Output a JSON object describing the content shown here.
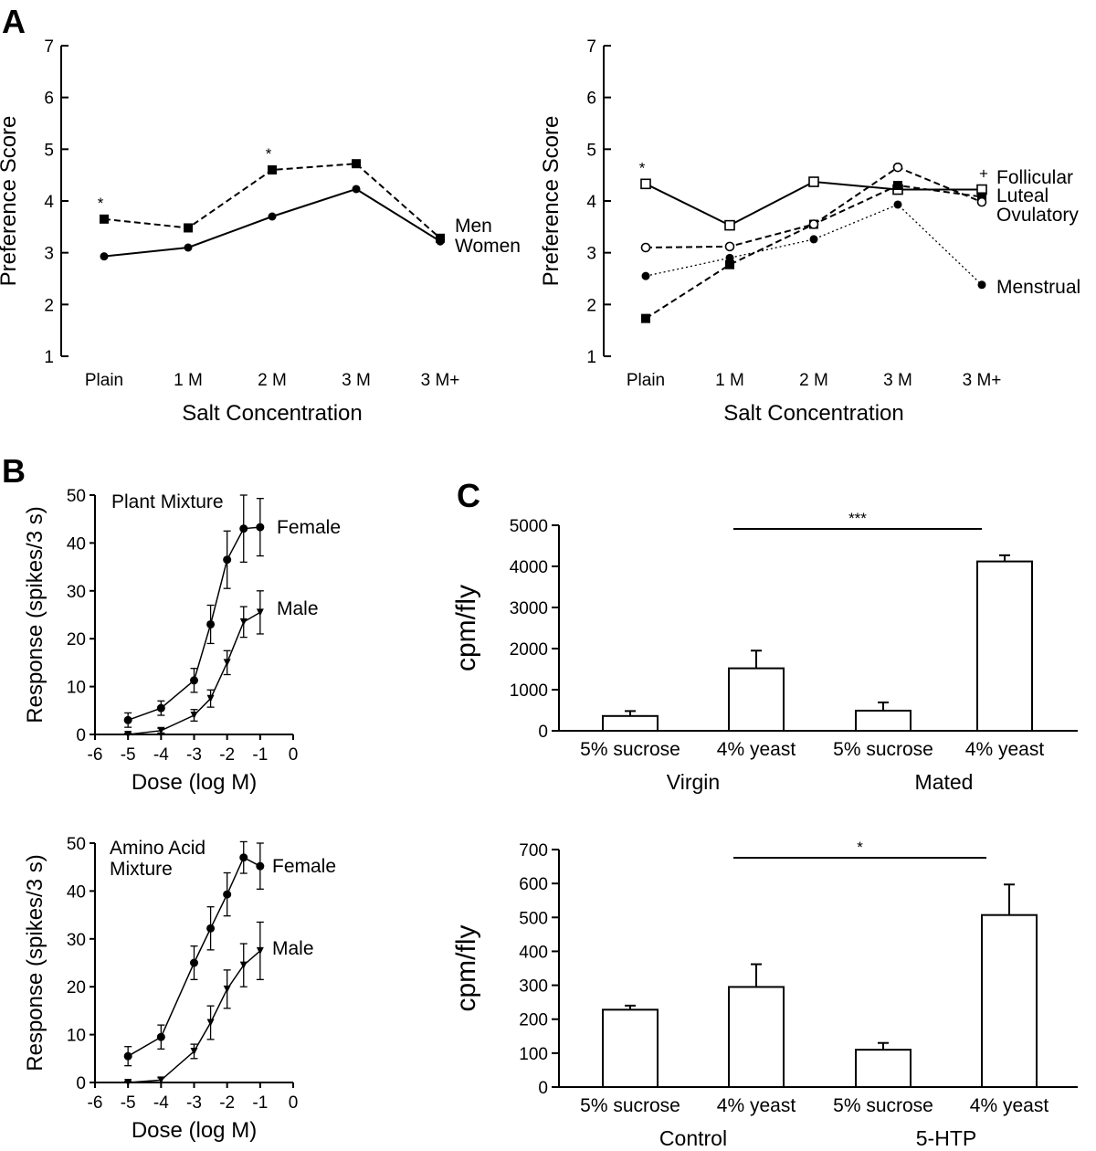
{
  "panel_labels": {
    "a": "A",
    "b": "B",
    "c": "C"
  },
  "chart_data": [
    {
      "id": "A1",
      "type": "line",
      "ylabel": "Preference Score",
      "xlabel": "Salt Concentration",
      "categories": [
        "Plain",
        "1 M",
        "2 M",
        "3 M",
        "3 M+"
      ],
      "ylim": [
        1,
        7
      ],
      "yticks": [
        "1",
        "2",
        "3",
        "4",
        "5",
        "6",
        "7"
      ],
      "series": [
        {
          "name": "Men",
          "style": "dashed",
          "marker": "filled-square",
          "values": [
            3.65,
            3.48,
            4.6,
            4.72,
            3.28
          ]
        },
        {
          "name": "Women",
          "style": "solid",
          "marker": "filled-circle",
          "values": [
            2.93,
            3.1,
            3.7,
            4.23,
            3.22
          ]
        }
      ],
      "sig_marks": [
        {
          "category": 0,
          "label": "*"
        },
        {
          "category": 2,
          "label": "*"
        }
      ]
    },
    {
      "id": "A2",
      "type": "line",
      "ylabel": "Preference Score",
      "xlabel": "Salt Concentration",
      "categories": [
        "Plain",
        "1 M",
        "2 M",
        "3 M",
        "3 M+"
      ],
      "ylim": [
        1,
        7
      ],
      "yticks": [
        "1",
        "2",
        "3",
        "4",
        "5",
        "6",
        "7"
      ],
      "series": [
        {
          "name": "Follicular",
          "style": "solid",
          "marker": "open-square",
          "values": [
            4.33,
            3.53,
            4.37,
            4.22,
            4.22
          ]
        },
        {
          "name": "Luteal",
          "style": "dashed",
          "marker": "filled-square",
          "values": [
            1.73,
            2.77,
            3.55,
            4.3,
            4.08
          ]
        },
        {
          "name": "Ovulatory",
          "style": "dashed",
          "marker": "open-circle",
          "values": [
            3.1,
            3.12,
            3.55,
            4.65,
            3.98
          ]
        },
        {
          "name": "Menstrual",
          "style": "dotted",
          "marker": "filled-circle",
          "values": [
            2.55,
            2.9,
            3.26,
            3.93,
            2.38
          ]
        }
      ],
      "sig_marks": [
        {
          "category": 0,
          "label": "*"
        },
        {
          "category": 4,
          "label": "+"
        }
      ]
    },
    {
      "id": "B1",
      "type": "line",
      "title": "Plant Mixture",
      "ylabel": "Response (spikes/3 s)",
      "xlabel": "Dose (log M)",
      "xlim": [
        -6,
        0
      ],
      "ylim": [
        0,
        50
      ],
      "xticks": [
        "-6",
        "-5",
        "-4",
        "-3",
        "-2",
        "-1",
        "0"
      ],
      "yticks": [
        "0",
        "10",
        "20",
        "30",
        "40",
        "50"
      ],
      "series": [
        {
          "name": "Female",
          "marker": "filled-circle",
          "x": [
            -5,
            -4,
            -3,
            -2.5,
            -2,
            -1.5,
            -1
          ],
          "values": [
            3,
            5.5,
            11.3,
            23,
            36.5,
            43,
            43.3
          ],
          "err": [
            1.5,
            1.5,
            2.5,
            4,
            6,
            7,
            6
          ]
        },
        {
          "name": "Male",
          "marker": "triangle-down",
          "x": [
            -5,
            -4,
            -3,
            -2.5,
            -2,
            -1.5,
            -1
          ],
          "values": [
            0,
            0.8,
            4,
            7.5,
            15,
            23.5,
            25.5
          ],
          "err": [
            0.3,
            0.5,
            1.2,
            1.8,
            2.5,
            3.2,
            4.5
          ]
        }
      ]
    },
    {
      "id": "B2",
      "type": "line",
      "title": "Amino Acid Mixture",
      "title_lines": [
        "Amino Acid",
        "Mixture"
      ],
      "ylabel": "Response (spikes/3 s)",
      "xlabel": "Dose (log M)",
      "xlim": [
        -6,
        0
      ],
      "ylim": [
        0,
        50
      ],
      "xticks": [
        "-6",
        "-5",
        "-4",
        "-3",
        "-2",
        "-1",
        "0"
      ],
      "yticks": [
        "0",
        "10",
        "20",
        "30",
        "40",
        "50"
      ],
      "series": [
        {
          "name": "Female",
          "marker": "filled-circle",
          "x": [
            -5,
            -4,
            -3,
            -2.5,
            -2,
            -1.5,
            -1
          ],
          "values": [
            5.5,
            9.5,
            25,
            32.2,
            39.3,
            47,
            45.2
          ],
          "err": [
            2,
            2.5,
            3.5,
            4.5,
            4.5,
            3.3,
            4.8
          ]
        },
        {
          "name": "Male",
          "marker": "triangle-down",
          "x": [
            -5,
            -4,
            -3,
            -2.5,
            -2,
            -1.5,
            -1
          ],
          "values": [
            0,
            0.5,
            6.5,
            12.5,
            19.5,
            24.5,
            27.5
          ],
          "err": [
            0.3,
            0.5,
            1.5,
            3.5,
            4,
            4.5,
            6
          ]
        }
      ]
    },
    {
      "id": "C1",
      "type": "bar",
      "ylabel": "cpm/fly",
      "ylim": [
        0,
        5000
      ],
      "yticks": [
        "0",
        "1000",
        "2000",
        "3000",
        "4000",
        "5000"
      ],
      "categories": [
        "5% sucrose",
        "4% yeast",
        "5% sucrose",
        "4% yeast"
      ],
      "groups": [
        "Virgin",
        "Mated"
      ],
      "values": [
        360,
        1520,
        490,
        4120
      ],
      "err": [
        120,
        430,
        200,
        150
      ],
      "significance": {
        "from": 1,
        "to": 3,
        "label": "***"
      }
    },
    {
      "id": "C2",
      "type": "bar",
      "ylabel": "cpm/fly",
      "ylim": [
        0,
        700
      ],
      "yticks": [
        "0",
        "100",
        "200",
        "300",
        "400",
        "500",
        "600",
        "700"
      ],
      "categories": [
        "5% sucrose",
        "4% yeast",
        "5% sucrose",
        "4% yeast"
      ],
      "groups": [
        "Control",
        "5-HTP"
      ],
      "values": [
        228,
        295,
        110,
        507
      ],
      "err": [
        12,
        67,
        20,
        90
      ],
      "significance": {
        "from": 1,
        "to": 3,
        "label": "*"
      }
    }
  ]
}
